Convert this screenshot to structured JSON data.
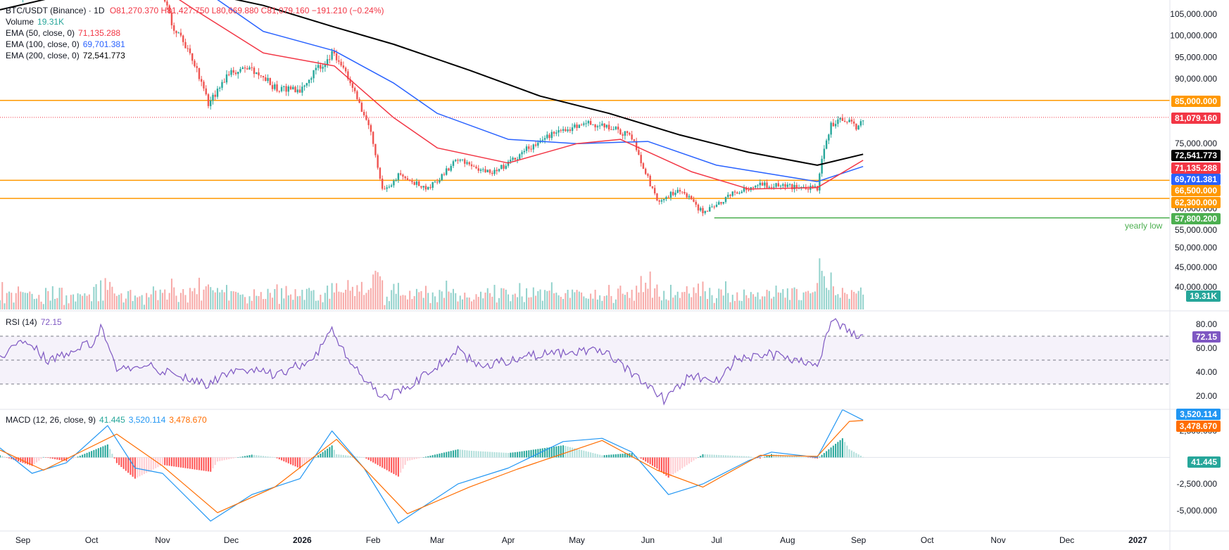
{
  "header": {
    "symbol": "BTC/USDT (Binance) · 1D",
    "ohlc_text": "O81,270.370 H81,427.750 L80,669.880 C81,079.160 −191.210 (−0.24%)",
    "volume_label": "Volume",
    "volume_value": "19.31K",
    "ema50_label": "EMA (50, close, 0)",
    "ema50_value": "71,135.288",
    "ema100_label": "EMA (100, close, 0)",
    "ema100_value": "69,701.381",
    "ema200_label": "EMA (200, close, 0)",
    "ema200_value": "72,541.773"
  },
  "rsi_legend": {
    "label": "RSI (14)",
    "value": "72.15"
  },
  "macd_legend": {
    "label": "MACD (12, 26, close, 9)",
    "hist": "41.445",
    "macd": "3,520.114",
    "signal": "3,478.670"
  },
  "price_axis": [
    "105,000.000",
    "100,000.000",
    "95,000.000",
    "90,000.000",
    "75,000.000",
    "60,000.000",
    "55,000.000",
    "50,000.000",
    "45,000.000",
    "40,000.000"
  ],
  "rsi_axis": [
    "80.00",
    "60.00",
    "40.00",
    "20.00"
  ],
  "macd_axis": [
    "2,500.000",
    "-2,500.000",
    "-5,000.000"
  ],
  "time_axis": [
    "Sep",
    "Oct",
    "Nov",
    "Dec",
    "2026",
    "Feb",
    "Mar",
    "Apr",
    "May",
    "Jun",
    "Jul",
    "Aug",
    "Sep",
    "Oct",
    "Nov",
    "Dec",
    "2027"
  ],
  "badges": {
    "level_85000": "85,000.000",
    "last_price": "81,079.160",
    "ema200": "72,541.773",
    "ema50": "71,135.288",
    "ema100": "69,701.381",
    "level_66500": "66,500.000",
    "level_62300": "62,300.000",
    "level_57800": "57,800.200",
    "volume": "19.31K",
    "rsi": "72.15",
    "macd": "3,520.114",
    "signal": "3,478.670",
    "hist": "41.445"
  },
  "annotation": "yearly low",
  "colors": {
    "up": "#26a69a",
    "down": "#ef5350",
    "ema50": "#f23645",
    "ema100": "#2962ff",
    "ema200": "#000000",
    "level": "#ff9800",
    "yearly_low": "#4caf50",
    "rsi": "#7e57c2",
    "macd": "#2196f3",
    "signal": "#ff6d00"
  },
  "chart_data": {
    "type": "candlestick",
    "title": "BTC/USDT (Binance) · 1D",
    "x_range": [
      "2025-08-22",
      "2027-01-15"
    ],
    "last_bar": "2026-09-03",
    "price": {
      "scale": "linear",
      "horizontal_levels": [
        85000,
        66500,
        62300,
        57800.2
      ],
      "last": 81079.16,
      "yearly_low": {
        "value": 57800.2,
        "from": "2026-06-30"
      },
      "close_path": [
        [
          "2025-08-22",
          113500
        ],
        [
          "2025-09-01",
          109000
        ],
        [
          "2025-09-15",
          115500
        ],
        [
          "2025-10-01",
          116500
        ],
        [
          "2025-10-06",
          124500
        ],
        [
          "2025-10-10",
          112000
        ],
        [
          "2025-10-15",
          111000
        ],
        [
          "2025-11-01",
          110000
        ],
        [
          "2025-11-05",
          103000
        ],
        [
          "2025-11-14",
          95000
        ],
        [
          "2025-11-21",
          84500
        ],
        [
          "2025-11-30",
          91000
        ],
        [
          "2025-12-10",
          92500
        ],
        [
          "2025-12-20",
          88000
        ],
        [
          "2025-12-31",
          87500
        ],
        [
          "2026-01-14",
          96000
        ],
        [
          "2026-01-20",
          91000
        ],
        [
          "2026-01-31",
          78000
        ],
        [
          "2026-02-05",
          64000
        ],
        [
          "2026-02-12",
          67500
        ],
        [
          "2026-02-25",
          64500
        ],
        [
          "2026-03-10",
          71500
        ],
        [
          "2026-03-25",
          68000
        ],
        [
          "2026-04-10",
          74000
        ],
        [
          "2026-04-20",
          77000
        ],
        [
          "2026-05-05",
          79500
        ],
        [
          "2026-05-15",
          79000
        ],
        [
          "2026-05-25",
          76500
        ],
        [
          "2026-06-05",
          61500
        ],
        [
          "2026-06-15",
          64500
        ],
        [
          "2026-06-25",
          59000
        ],
        [
          "2026-06-30",
          60500
        ],
        [
          "2026-07-10",
          64000
        ],
        [
          "2026-07-20",
          65500
        ],
        [
          "2026-08-01",
          65000
        ],
        [
          "2026-08-14",
          64500
        ],
        [
          "2026-08-16",
          71000
        ],
        [
          "2026-08-20",
          79500
        ],
        [
          "2026-08-26",
          80500
        ],
        [
          "2026-09-01",
          78500
        ],
        [
          "2026-09-03",
          81079.16
        ]
      ],
      "ema50_path": [
        [
          "2025-08-22",
          115000
        ],
        [
          "2025-10-10",
          118500
        ],
        [
          "2025-11-15",
          106000
        ],
        [
          "2025-12-15",
          96000
        ],
        [
          "2026-01-15",
          93000
        ],
        [
          "2026-02-10",
          81000
        ],
        [
          "2026-03-01",
          74000
        ],
        [
          "2026-04-01",
          70500
        ],
        [
          "2026-05-01",
          75000
        ],
        [
          "2026-05-20",
          76000
        ],
        [
          "2026-06-20",
          68500
        ],
        [
          "2026-07-15",
          64500
        ],
        [
          "2026-08-14",
          64800
        ],
        [
          "2026-09-03",
          71135.288
        ]
      ],
      "ema100_path": [
        [
          "2025-08-22",
          113000
        ],
        [
          "2025-10-10",
          116500
        ],
        [
          "2025-11-15",
          112000
        ],
        [
          "2025-12-15",
          101000
        ],
        [
          "2026-01-15",
          96500
        ],
        [
          "2026-02-10",
          89000
        ],
        [
          "2026-03-01",
          82000
        ],
        [
          "2026-04-01",
          76000
        ],
        [
          "2026-05-01",
          75000
        ],
        [
          "2026-06-01",
          75500
        ],
        [
          "2026-07-01",
          70000
        ],
        [
          "2026-08-14",
          66200
        ],
        [
          "2026-09-03",
          69701.381
        ]
      ],
      "ema200_path": [
        [
          "2025-08-22",
          106000
        ],
        [
          "2025-10-10",
          112000
        ],
        [
          "2025-11-01",
          112000
        ],
        [
          "2025-12-15",
          107000
        ],
        [
          "2026-01-15",
          102000
        ],
        [
          "2026-02-10",
          98000
        ],
        [
          "2026-03-15",
          92000
        ],
        [
          "2026-04-15",
          86000
        ],
        [
          "2026-05-15",
          82000
        ],
        [
          "2026-06-15",
          77000
        ],
        [
          "2026-07-15",
          73000
        ],
        [
          "2026-08-14",
          70000
        ],
        [
          "2026-09-03",
          72541.773
        ]
      ]
    },
    "volume": {
      "last": "19.31K"
    },
    "rsi": {
      "period": 14,
      "last": 72.15,
      "bands": [
        70,
        50,
        30
      ],
      "ylim": [
        10,
        90
      ],
      "path": [
        [
          "2025-08-22",
          50
        ],
        [
          "2025-09-01",
          68
        ],
        [
          "2025-09-12",
          50
        ],
        [
          "2025-10-01",
          64
        ],
        [
          "2025-10-05",
          78
        ],
        [
          "2025-10-12",
          40
        ],
        [
          "2025-10-25",
          46
        ],
        [
          "2025-11-05",
          38
        ],
        [
          "2025-11-20",
          30
        ],
        [
          "2025-12-05",
          44
        ],
        [
          "2025-12-20",
          38
        ],
        [
          "2026-01-06",
          50
        ],
        [
          "2026-01-14",
          75
        ],
        [
          "2026-01-22",
          46
        ],
        [
          "2026-02-06",
          18
        ],
        [
          "2026-02-20",
          32
        ],
        [
          "2026-03-10",
          58
        ],
        [
          "2026-03-20",
          44
        ],
        [
          "2026-04-10",
          54
        ],
        [
          "2026-05-01",
          56
        ],
        [
          "2026-05-12",
          58
        ],
        [
          "2026-05-20",
          46
        ],
        [
          "2026-06-01",
          30
        ],
        [
          "2026-06-08",
          17
        ],
        [
          "2026-06-20",
          38
        ],
        [
          "2026-06-30",
          30
        ],
        [
          "2026-07-10",
          52
        ],
        [
          "2026-07-25",
          55
        ],
        [
          "2026-08-14",
          45
        ],
        [
          "2026-08-20",
          84
        ],
        [
          "2026-08-26",
          78
        ],
        [
          "2026-09-01",
          68
        ],
        [
          "2026-09-03",
          72.15
        ]
      ]
    },
    "macd": {
      "fast": 12,
      "slow": 26,
      "signal_period": 9,
      "last": {
        "macd": 3520.114,
        "signal": 3478.67,
        "histogram": 41.445
      },
      "macd_path": [
        [
          "2025-08-22",
          900
        ],
        [
          "2025-09-05",
          -1500
        ],
        [
          "2025-09-20",
          -500
        ],
        [
          "2025-10-08",
          3000
        ],
        [
          "2025-10-20",
          -1000
        ],
        [
          "2025-11-01",
          -1500
        ],
        [
          "2025-11-22",
          -6000
        ],
        [
          "2025-12-10",
          -3500
        ],
        [
          "2025-12-31",
          -2000
        ],
        [
          "2026-01-14",
          2500
        ],
        [
          "2026-01-28",
          -1000
        ],
        [
          "2026-02-12",
          -6200
        ],
        [
          "2026-03-10",
          -2500
        ],
        [
          "2026-04-01",
          -1000
        ],
        [
          "2026-04-25",
          1500
        ],
        [
          "2026-05-12",
          1800
        ],
        [
          "2026-05-25",
          500
        ],
        [
          "2026-06-10",
          -3500
        ],
        [
          "2026-06-25",
          -2500
        ],
        [
          "2026-07-15",
          -300
        ],
        [
          "2026-07-25",
          500
        ],
        [
          "2026-08-14",
          0
        ],
        [
          "2026-08-25",
          4500
        ],
        [
          "2026-09-03",
          3520.114
        ]
      ],
      "signal_path": [
        [
          "2025-08-22",
          700
        ],
        [
          "2025-09-10",
          -1200
        ],
        [
          "2025-10-12",
          2200
        ],
        [
          "2025-11-01",
          -800
        ],
        [
          "2025-11-25",
          -5200
        ],
        [
          "2025-12-20",
          -2800
        ],
        [
          "2026-01-16",
          1700
        ],
        [
          "2026-02-16",
          -5300
        ],
        [
          "2026-03-15",
          -2800
        ],
        [
          "2026-04-05",
          -1100
        ],
        [
          "2026-05-12",
          1600
        ],
        [
          "2026-06-05",
          -1200
        ],
        [
          "2026-06-25",
          -2800
        ],
        [
          "2026-07-20",
          200
        ],
        [
          "2026-08-14",
          100
        ],
        [
          "2026-08-28",
          3400
        ],
        [
          "2026-09-03",
          3478.67
        ]
      ],
      "ylim": [
        -6800,
        4400
      ]
    }
  }
}
